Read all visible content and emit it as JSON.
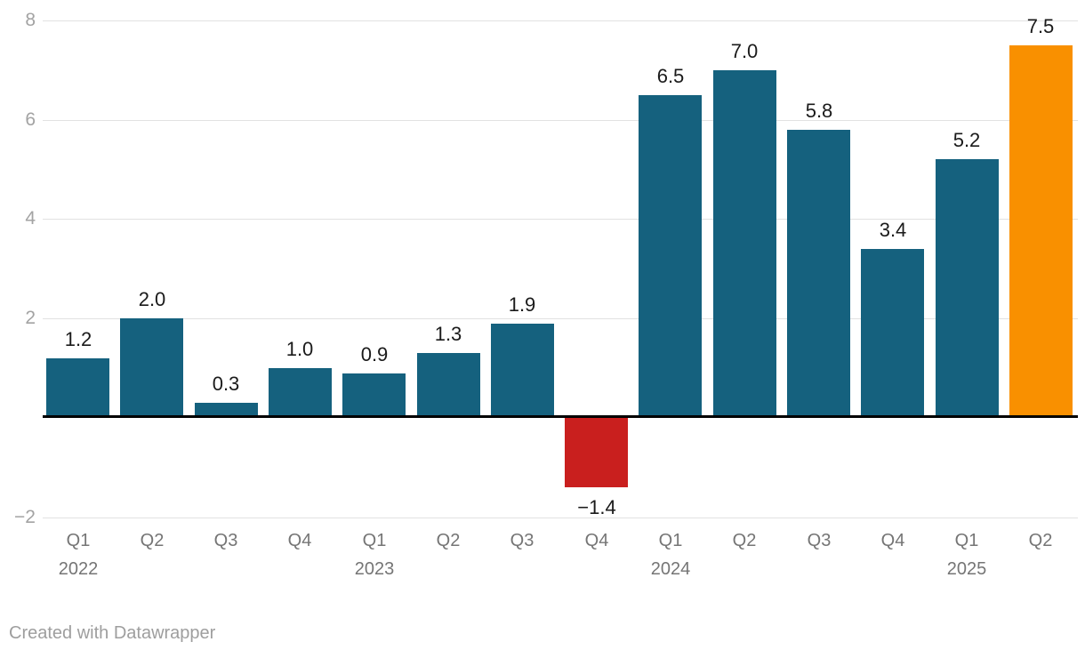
{
  "chart_data": {
    "type": "bar",
    "categories": [
      {
        "quarter": "Q1",
        "year": "2022"
      },
      {
        "quarter": "Q2",
        "year": ""
      },
      {
        "quarter": "Q3",
        "year": ""
      },
      {
        "quarter": "Q4",
        "year": ""
      },
      {
        "quarter": "Q1",
        "year": "2023"
      },
      {
        "quarter": "Q2",
        "year": ""
      },
      {
        "quarter": "Q3",
        "year": ""
      },
      {
        "quarter": "Q4",
        "year": ""
      },
      {
        "quarter": "Q1",
        "year": "2024"
      },
      {
        "quarter": "Q2",
        "year": ""
      },
      {
        "quarter": "Q3",
        "year": ""
      },
      {
        "quarter": "Q4",
        "year": ""
      },
      {
        "quarter": "Q1",
        "year": "2025"
      },
      {
        "quarter": "Q2",
        "year": ""
      }
    ],
    "values": [
      1.2,
      2.0,
      0.3,
      1.0,
      0.9,
      1.3,
      1.9,
      -1.4,
      6.5,
      7.0,
      5.8,
      3.4,
      5.2,
      7.5
    ],
    "value_labels": [
      "1.2",
      "2.0",
      "0.3",
      "1.0",
      "0.9",
      "1.3",
      "1.9",
      "−1.4",
      "6.5",
      "7.0",
      "5.8",
      "3.4",
      "5.2",
      "7.5"
    ],
    "bar_color_keys": [
      "teal",
      "teal",
      "teal",
      "teal",
      "teal",
      "teal",
      "teal",
      "red",
      "teal",
      "teal",
      "teal",
      "teal",
      "teal",
      "orange"
    ],
    "yticks": [
      {
        "value": 8,
        "label": "8"
      },
      {
        "value": 6,
        "label": "6"
      },
      {
        "value": 4,
        "label": "4"
      },
      {
        "value": 2,
        "label": "2"
      },
      {
        "value": -2,
        "label": "−2"
      }
    ],
    "ylim": [
      -2.5,
      8
    ],
    "baseline_value": 0,
    "grid": true,
    "legend": "none"
  },
  "colors": {
    "teal": "#15617e",
    "red": "#c91f1e",
    "orange": "#f99000",
    "gridline": "#e2e2e2",
    "baseline": "#000000",
    "ytick_text": "#a3a3a3",
    "xtick_text": "#757575",
    "value_text": "#1a1a1a",
    "footer_text": "#9e9e9e",
    "background": "#ffffff"
  },
  "footer": {
    "credit": "Created with Datawrapper"
  }
}
